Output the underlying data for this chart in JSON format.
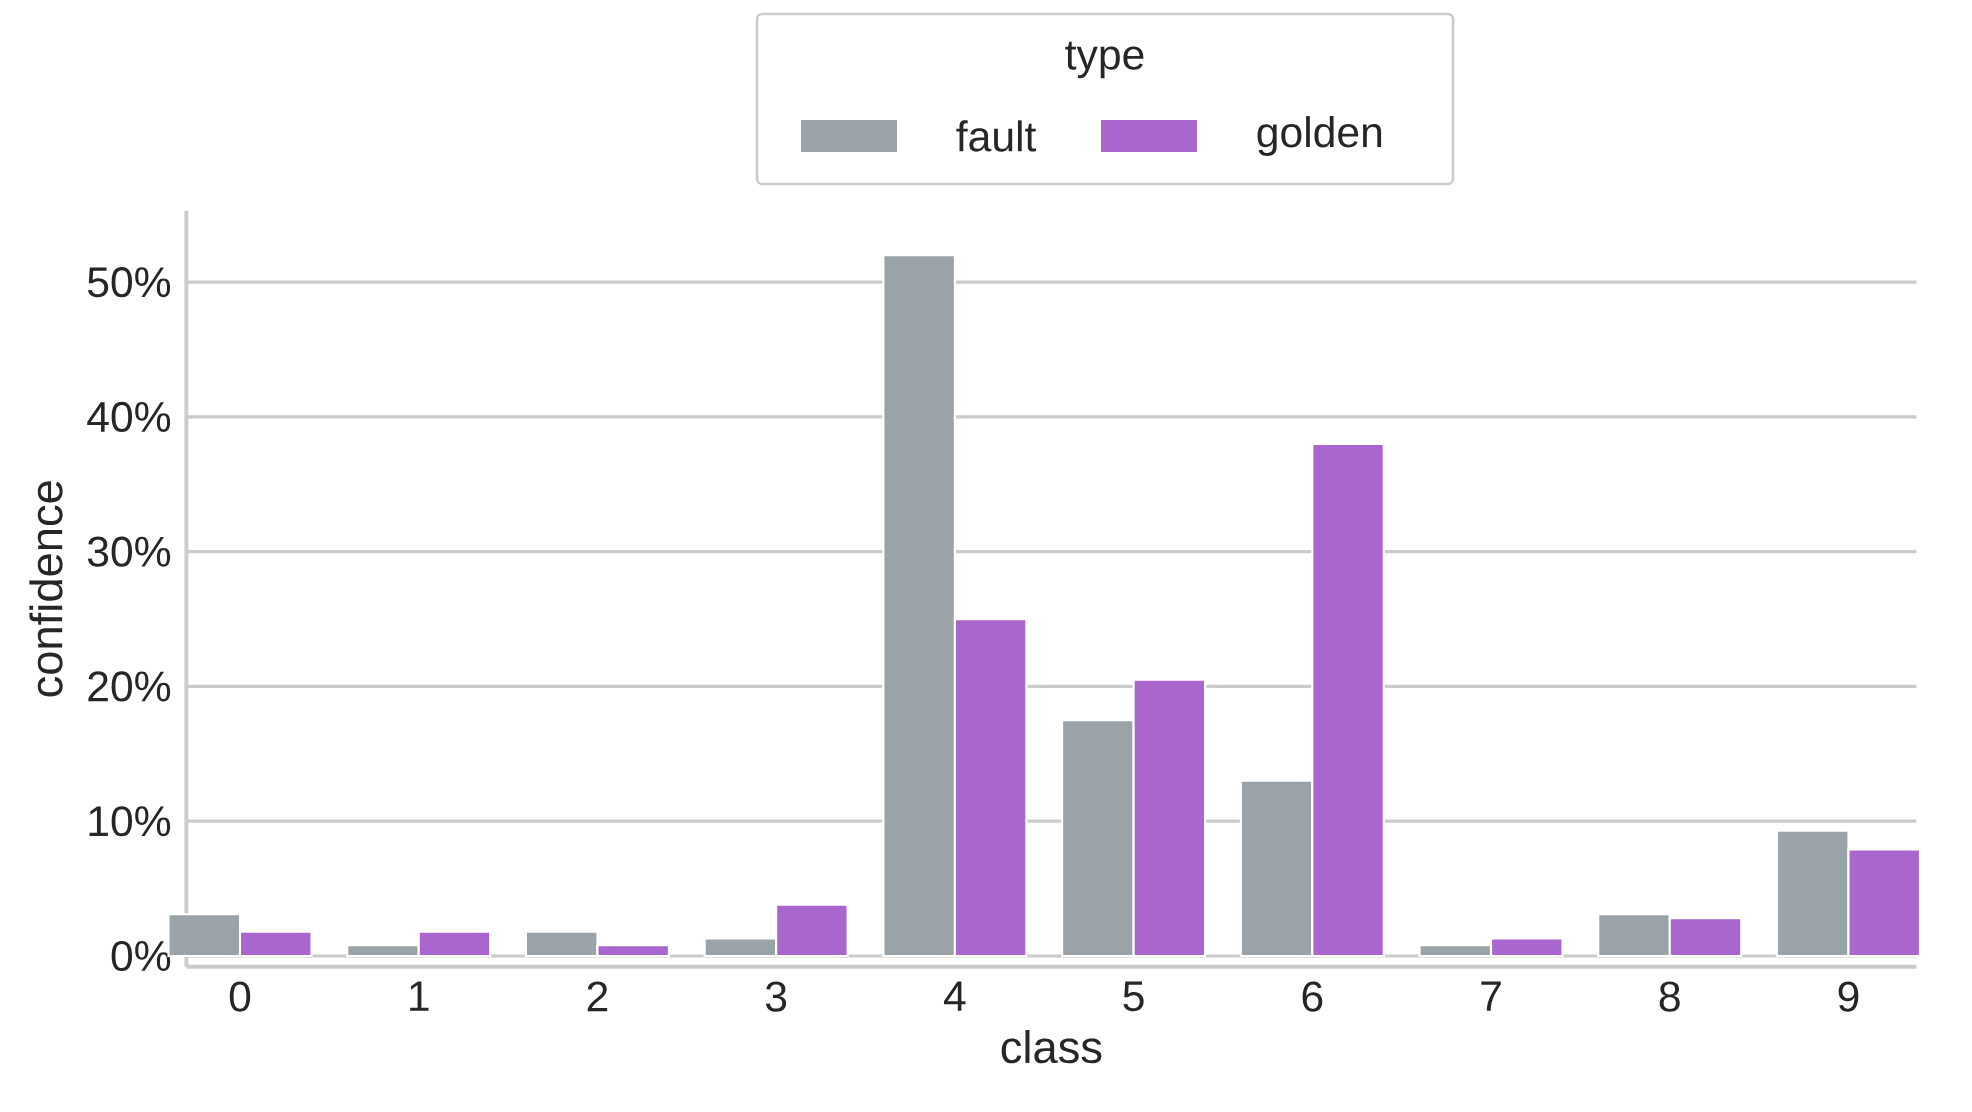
{
  "chart_data": {
    "type": "bar",
    "xlabel": "class",
    "ylabel": "confidence",
    "legend_title": "type",
    "legend": "top",
    "categories": [
      "0",
      "1",
      "2",
      "3",
      "4",
      "5",
      "6",
      "7",
      "8",
      "9"
    ],
    "series": [
      {
        "name": "fault",
        "color": "#99a3a8",
        "values": [
          3.1,
          0.8,
          1.8,
          1.3,
          52,
          17.5,
          13,
          0.8,
          3.1,
          9.3
        ]
      },
      {
        "name": "golden",
        "color": "#a966cf",
        "values": [
          1.8,
          1.8,
          0.8,
          3.8,
          25,
          20.5,
          38,
          1.3,
          2.8,
          7.9
        ]
      }
    ],
    "ylim": [
      -0.8,
      55.3
    ],
    "yticks": [
      {
        "value": 0,
        "label": "0%"
      },
      {
        "value": 10,
        "label": "10%"
      },
      {
        "value": 20,
        "label": "20%"
      },
      {
        "value": 30,
        "label": "30%"
      },
      {
        "value": 40,
        "label": "40%"
      },
      {
        "value": 50,
        "label": "50%"
      }
    ],
    "grid": "y"
  }
}
